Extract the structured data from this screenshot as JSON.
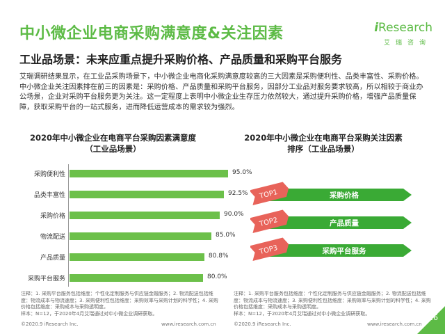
{
  "header": {
    "title": "中小微企业电商采购满意度&关注因素",
    "subtitle": "工业品场景：未来应重点提升采购价格、产品质量和采购平台服务",
    "brand_logo_i": "i",
    "brand_logo_rest": "Research",
    "brand_cn": "艾瑞咨询"
  },
  "intro": {
    "paragraph": "艾瑞调研结果显示，在工业品采购场景下，中小微企业电商化采购满意度较高的三大因素是采购便利性、品类丰富性、采购价格。中小微企业关注因素排在前三的因素是：采购价格、产品质量和采购平台服务，因部分工业品对服务要求较高，所以相较于商业办公场景，企业对采购平台服务更为关注。这一定程度上表明中小微企业生存压力依然较大，通过提升采购价格，增强产品质量保障，获取采购平台的一站式服务，进而降低运营成本的需求较为强烈。"
  },
  "chart_data": [
    {
      "type": "bar",
      "orientation": "horizontal",
      "title": "2020年中小微企业在电商平台采购因素满意度",
      "subtitle": "（工业品场景）",
      "categories": [
        "采购便利性",
        "品类丰富性",
        "采购价格",
        "物流配送",
        "产品质量",
        "采购平台服务"
      ],
      "values": [
        95.0,
        92.5,
        90.0,
        85.0,
        80.8,
        80.0
      ],
      "value_labels": [
        "95.0%",
        "92.5%",
        "90.0%",
        "85.0%",
        "80.8%",
        "80.0%"
      ],
      "unit": "%",
      "xlim": [
        0,
        100
      ],
      "grid": false,
      "color": "#6cc04a"
    },
    {
      "type": "table",
      "title": "2020年中小微企业在电商平台采购关注因素",
      "subtitle": "排序（工业品场景）",
      "ranks": [
        "TOP1",
        "TOP2",
        "TOP3"
      ],
      "items": [
        "采购价格",
        "产品质量",
        "采购平台服务"
      ]
    }
  ],
  "notes": {
    "left": "注释：1. 采购平台服务包括维度：个性化定制服务与供应链金融服务；2. 物流配送包括维度：物流成本与物流速度；3. 采购便利性包括维度：采购效率与采购计划的科学性；4. 采购价格包括维度：采购成本与采购透明度。",
    "left_source": "样本：N=12，于2020年4月艾瑞通过对中小微企业调研获取。",
    "right": "注释：1. 采购平台服务包括维度：个性化定制服务与供应链金融服务；2. 物流配送包括维度：物流成本与物流速度；3. 采购便利性包括维度：采购效率与采购计划的科学性；4. 采购价格包括维度：采购成本与采购透明度。",
    "right_source": "样本：N=12，于2020年4月艾瑞通过对中小微企业调研获取。"
  },
  "footer": {
    "left_copyright": "©2020.9 iResearch Inc.",
    "left_url": "www.iresearch.com.cn",
    "right_copyright": "©2020.9 iResearch Inc.",
    "right_url": "www.iresearch.com.cn",
    "page": "26"
  },
  "colors": {
    "brand_green": "#5dbb46",
    "bar_green": "#6cc04a",
    "ribbon_pink": "#e8635a",
    "ribbon_green": "#3aaa35"
  }
}
